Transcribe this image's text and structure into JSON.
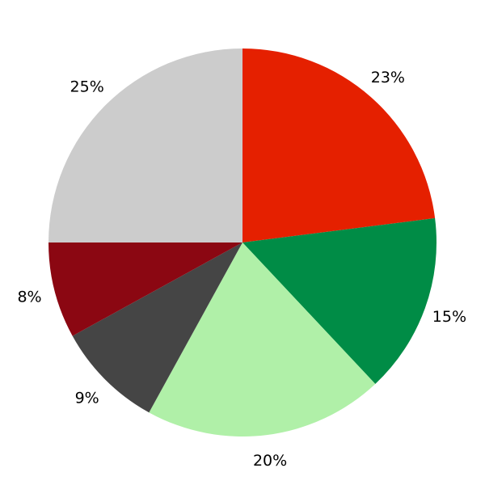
{
  "chart_data": {
    "type": "pie",
    "start": "top",
    "direction": "clockwise",
    "slices": [
      {
        "label": "23%",
        "value": 23,
        "color": "#e52000"
      },
      {
        "label": "15%",
        "value": 15,
        "color": "#008c46"
      },
      {
        "label": "20%",
        "value": 20,
        "color": "#b0f0a8"
      },
      {
        "label": "9%",
        "value": 9,
        "color": "#454545"
      },
      {
        "label": "8%",
        "value": 8,
        "color": "#8b0712"
      },
      {
        "label": "25%",
        "value": 25,
        "color": "#cccccc"
      }
    ]
  }
}
